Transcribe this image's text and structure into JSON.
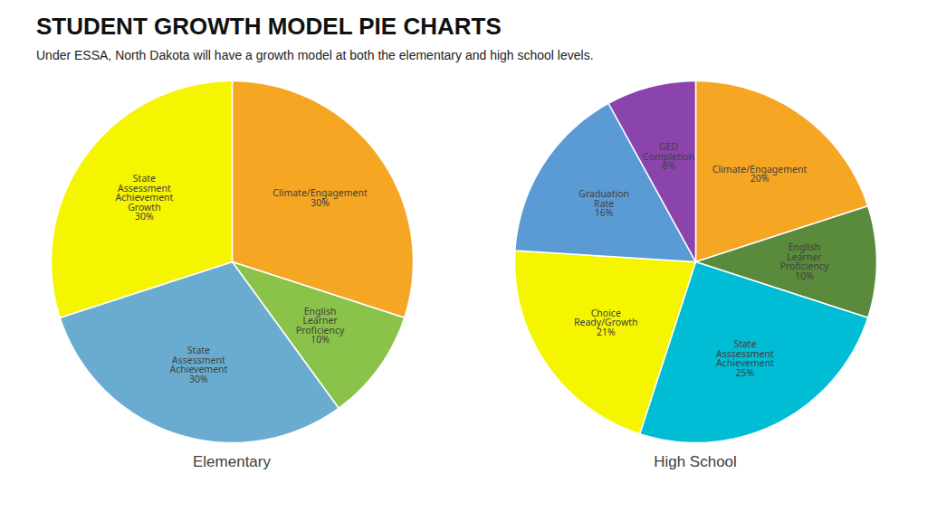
{
  "title": "STUDENT GROWTH MODEL PIE CHARTS",
  "subtitle": "Under ESSA, North Dakota will have a growth model at both the elementary and high school levels.",
  "chart_data": [
    {
      "type": "pie",
      "title": "Elementary",
      "categories": [
        "Climate/Engagement\n30%",
        "English\nLearner\nProficiency\n10%",
        "State\nAssessment\nAchievement\n30%",
        "State\nAssessment\nAchievement\nGrowth\n30%"
      ],
      "values": [
        30,
        10,
        30,
        30
      ],
      "colors": [
        "#f5a623",
        "#8bc34a",
        "#6aaccf",
        "#f5f500"
      ]
    },
    {
      "type": "pie",
      "title": "High School",
      "categories": [
        "Climate/Engagement\n20%",
        "English\nLearner\nProficiency\n10%",
        "State\nAsssessment\nAchievement\n25%",
        "Choice\nReady/Growth\n21%",
        "Graduation\nRate\n16%",
        "GED\nCompletion\n8%"
      ],
      "values": [
        20,
        10,
        25,
        21,
        16,
        8
      ],
      "colors": [
        "#f5a623",
        "#5a8a3c",
        "#00bcd4",
        "#f5f500",
        "#5b9bd5",
        "#8b44ac"
      ]
    }
  ]
}
